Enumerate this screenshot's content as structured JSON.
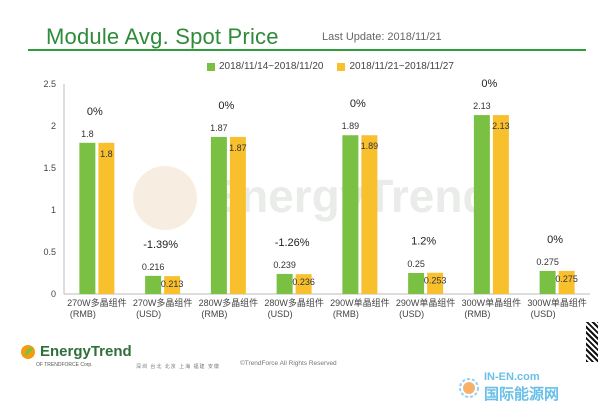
{
  "header": {
    "title": "Module Avg. Spot Price",
    "last_update": "Last Update: 2018/11/21"
  },
  "legend": [
    {
      "label": "2018/11/14~2018/11/20",
      "color": "#7ac143"
    },
    {
      "label": "2018/11/21~2018/11/27",
      "color": "#f9c02e"
    }
  ],
  "chart_data": {
    "type": "bar",
    "title": "Module Avg. Spot Price",
    "categories": [
      [
        "270W多晶组件",
        "(RMB)"
      ],
      [
        "270W多晶组件",
        "(USD)"
      ],
      [
        "280W多晶组件",
        "(RMB)"
      ],
      [
        "280W多晶组件",
        "(USD)"
      ],
      [
        "290W单晶组件",
        "(RMB)"
      ],
      [
        "290W单晶组件",
        "(USD)"
      ],
      [
        "300W单晶组件",
        "(RMB)"
      ],
      [
        "300W单晶组件",
        "(USD)"
      ]
    ],
    "series": [
      {
        "name": "2018/11/14~2018/11/20",
        "values": [
          1.8,
          0.216,
          1.87,
          0.239,
          1.89,
          0.25,
          2.13,
          0.275
        ]
      },
      {
        "name": "2018/11/21~2018/11/27",
        "values": [
          1.8,
          0.213,
          1.87,
          0.236,
          1.89,
          0.253,
          2.13,
          0.275
        ]
      }
    ],
    "value_labels": [
      [
        "1.8",
        "0.216",
        "1.87",
        "0.239",
        "1.89",
        "0.25",
        "2.13",
        "0.275"
      ],
      [
        "1.8",
        "0.213",
        "1.87",
        "0.236",
        "1.89",
        "0.253",
        "2.13",
        "0.275"
      ]
    ],
    "change_labels": [
      "0%",
      "-1.39%",
      "0%",
      "-1.26%",
      "0%",
      "1.2%",
      "0%",
      "0%"
    ],
    "yticks": [
      "0",
      "0.5",
      "1",
      "1.5",
      "2",
      "2.5"
    ],
    "ylim": [
      0,
      2.5
    ],
    "grid": false,
    "legend_position": "top"
  },
  "watermark": "EnergyTrend",
  "footer": {
    "logo": "EnergyTrend",
    "logo_sub": "OF TRENDFORCE Corp.",
    "offices": "深圳  台北  北京  上海  福建  安徽",
    "copyright": "©TrendForce All Rights Reserved",
    "ien_small": "IN-EN.com",
    "ien_large": "国际能源网"
  }
}
